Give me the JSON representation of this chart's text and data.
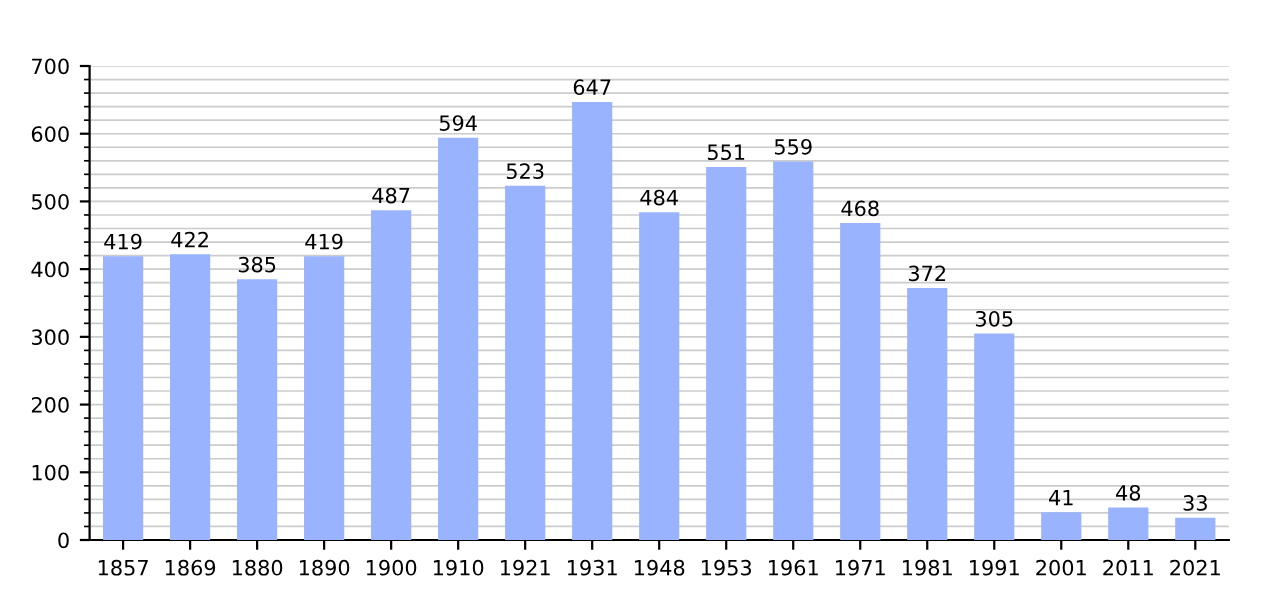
{
  "chart_data": {
    "type": "bar",
    "categories": [
      "1857",
      "1869",
      "1880",
      "1890",
      "1900",
      "1910",
      "1921",
      "1931",
      "1948",
      "1953",
      "1961",
      "1971",
      "1981",
      "1991",
      "2001",
      "2011",
      "2021"
    ],
    "values": [
      419,
      422,
      385,
      419,
      487,
      594,
      523,
      647,
      484,
      551,
      559,
      468,
      372,
      305,
      41,
      48,
      33
    ],
    "color": "#99b3ff",
    "ylim": [
      0,
      700
    ],
    "yticks": [
      0,
      100,
      200,
      300,
      400,
      500,
      600,
      700
    ],
    "grid": "y",
    "data_labels": true
  }
}
